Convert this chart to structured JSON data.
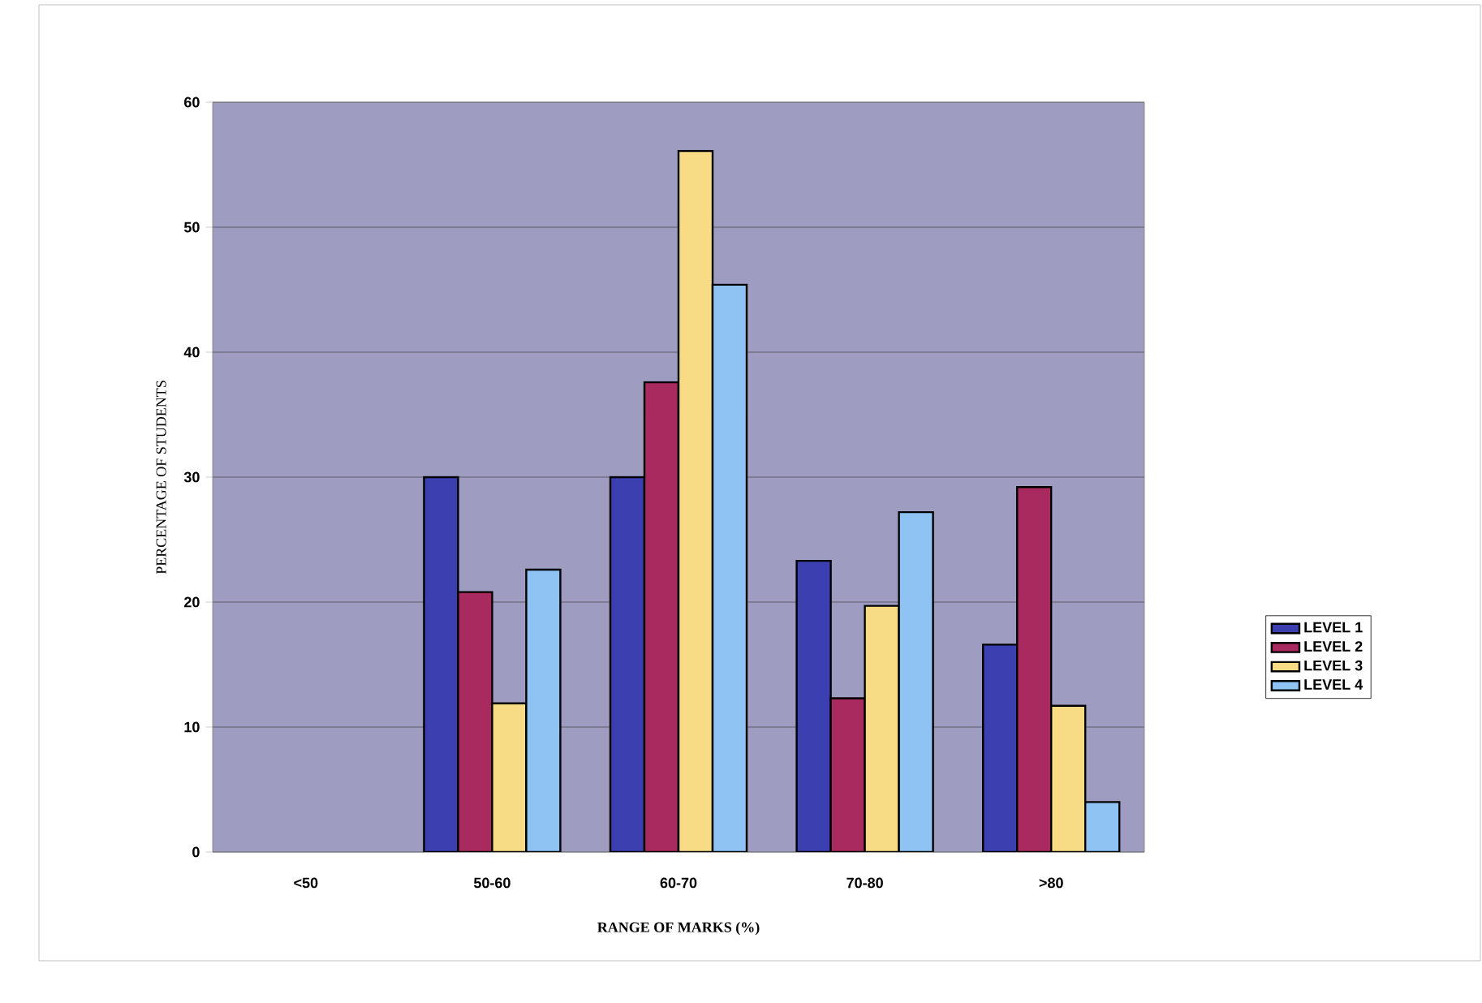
{
  "chart_data": {
    "type": "bar",
    "xlabel": "RANGE OF MARKS (%)",
    "ylabel": "PERCENTAGE OF STUDENTS",
    "categories": [
      "<50",
      "50-60",
      "60-70",
      "70-80",
      ">80"
    ],
    "series": [
      {
        "name": "LEVEL 1",
        "color": "#3b3fb0",
        "values": [
          null,
          30,
          30,
          23.3,
          16.6
        ]
      },
      {
        "name": "LEVEL 2",
        "color": "#a82a5e",
        "values": [
          null,
          20.8,
          37.6,
          12.3,
          29.2
        ]
      },
      {
        "name": "LEVEL 3",
        "color": "#f8dc85",
        "values": [
          null,
          11.9,
          56.1,
          19.7,
          11.7
        ]
      },
      {
        "name": "LEVEL 4",
        "color": "#8ec3f4",
        "values": [
          null,
          22.6,
          45.4,
          27.2,
          4.0
        ]
      }
    ],
    "ylim": [
      0,
      60
    ],
    "yticks": [
      0,
      10,
      20,
      30,
      40,
      50,
      60
    ],
    "grid": "y",
    "legend": "right"
  }
}
